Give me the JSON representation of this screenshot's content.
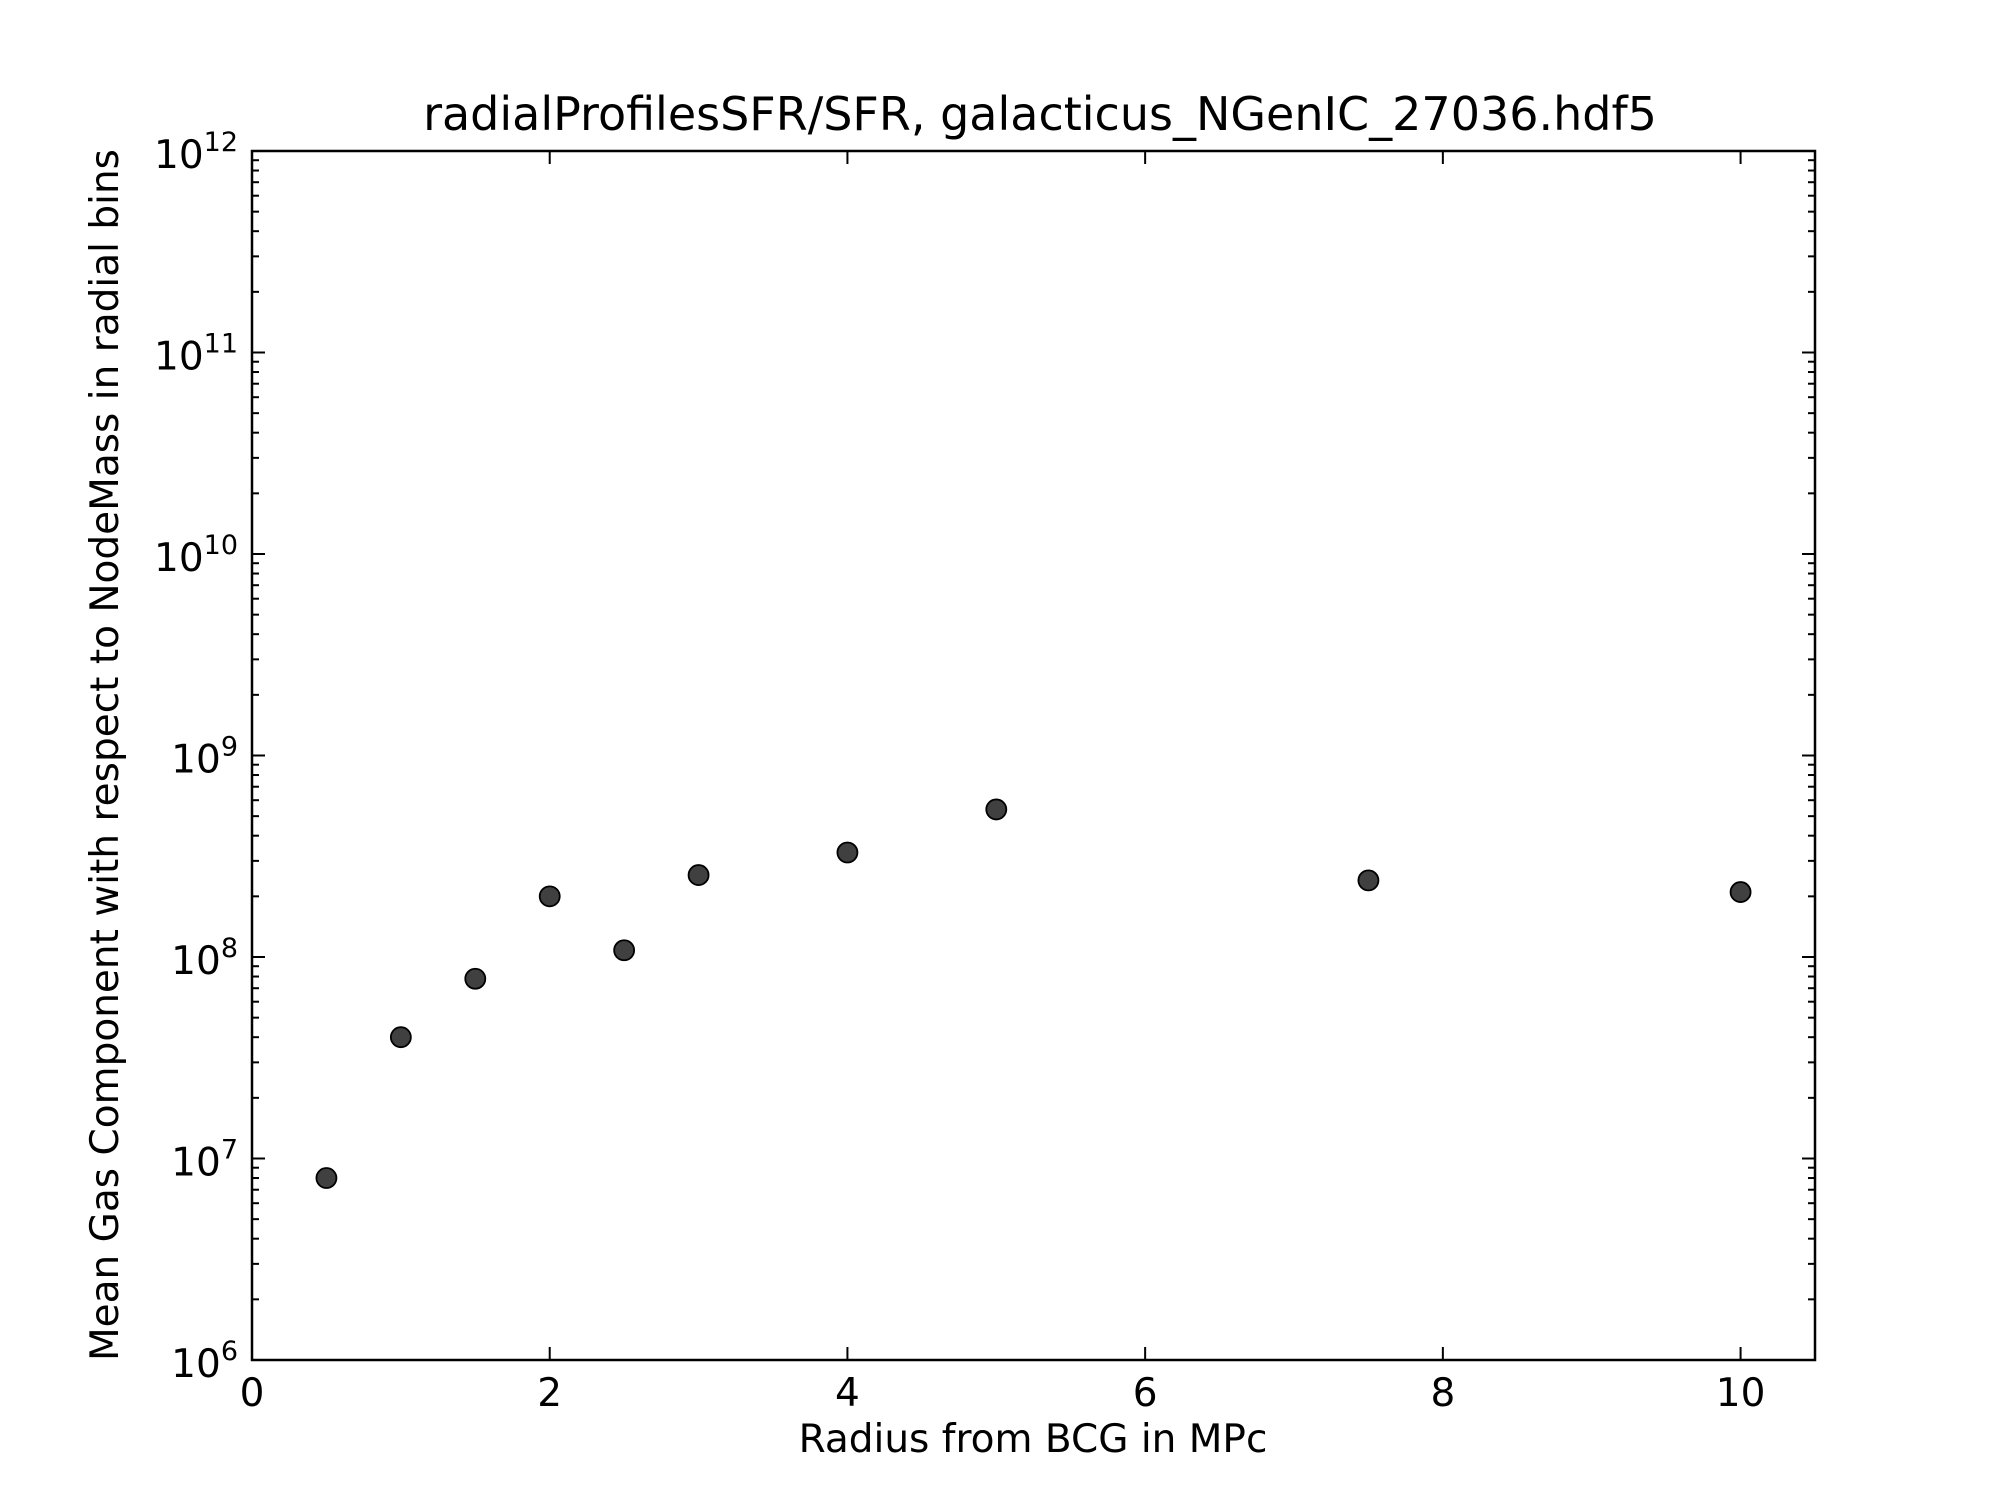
{
  "chart_data": {
    "type": "scatter",
    "title": "radialProfilesSFR/SFR, galacticus_NGenIC_27036.hdf5",
    "xlabel": "Radius from BCG in MPc",
    "ylabel": "Mean Gas Component with respect to NodeMass in radial bins",
    "xlim": [
      0,
      10.5
    ],
    "ylim": [
      1000000,
      1000000000000
    ],
    "yscale": "log",
    "grid": false,
    "x_ticks": [
      "0",
      "2",
      "4",
      "6",
      "8",
      "10"
    ],
    "y_ticks": [
      {
        "base": "10",
        "exp": "6"
      },
      {
        "base": "10",
        "exp": "7"
      },
      {
        "base": "10",
        "exp": "8"
      },
      {
        "base": "10",
        "exp": "9"
      },
      {
        "base": "10",
        "exp": "10"
      },
      {
        "base": "10",
        "exp": "11"
      },
      {
        "base": "10",
        "exp": "12"
      }
    ],
    "marker_color": "#404040",
    "x": [
      0.5,
      1.0,
      1.5,
      2.0,
      2.5,
      3.0,
      4.0,
      5.0,
      7.5,
      10.0
    ],
    "y": [
      8000000,
      40000000,
      78000000,
      200000000,
      108000000,
      255000000,
      330000000,
      540000000,
      240000000,
      210000000
    ]
  }
}
